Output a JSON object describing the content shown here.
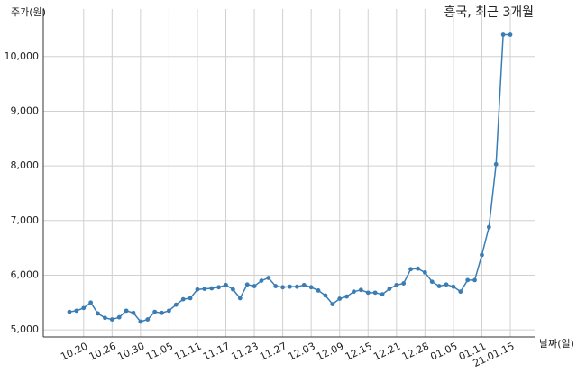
{
  "chart_data": {
    "type": "line",
    "title": "흥국, 최근 3개월",
    "y_label": "주가(원)",
    "x_label": "날짜(일)",
    "categories": [
      null,
      null,
      "10.20",
      null,
      null,
      null,
      "10.26",
      null,
      null,
      null,
      "10.30",
      null,
      null,
      null,
      "11.05",
      null,
      null,
      null,
      "11.11",
      null,
      null,
      null,
      "11.17",
      null,
      null,
      null,
      "11.23",
      null,
      null,
      null,
      "11.27",
      null,
      null,
      null,
      "12.03",
      null,
      null,
      null,
      "12.09",
      null,
      null,
      null,
      "12.15",
      null,
      null,
      null,
      "12.21",
      null,
      null,
      null,
      "12.28",
      null,
      null,
      null,
      "01.05",
      null,
      null,
      null,
      "01.11",
      null,
      null,
      null,
      "21.01.15"
    ],
    "values": [
      5330,
      5350,
      5400,
      5500,
      5300,
      5220,
      5190,
      5230,
      5350,
      5310,
      5150,
      5190,
      5330,
      5310,
      5350,
      5460,
      5560,
      5580,
      5740,
      5750,
      5760,
      5780,
      5820,
      5740,
      5580,
      5830,
      5800,
      5900,
      5950,
      5800,
      5780,
      5790,
      5790,
      5820,
      5780,
      5720,
      5630,
      5470,
      5570,
      5610,
      5700,
      5730,
      5680,
      5680,
      5650,
      5750,
      5820,
      5850,
      6110,
      6120,
      6050,
      5880,
      5800,
      5830,
      5790,
      5700,
      5910,
      5910,
      6370,
      6880,
      8030,
      10400,
      10400
    ],
    "color": "#3a7db5",
    "ylim": [
      4870,
      10870
    ],
    "yticks": [
      {
        "value": 5000,
        "label": "5,000"
      },
      {
        "value": 6000,
        "label": "6,000"
      },
      {
        "value": 7000,
        "label": "7,000"
      },
      {
        "value": 8000,
        "label": "8,000"
      },
      {
        "value": 9000,
        "label": "9,000"
      },
      {
        "value": 10000,
        "label": "10,000"
      }
    ],
    "grid": true
  }
}
